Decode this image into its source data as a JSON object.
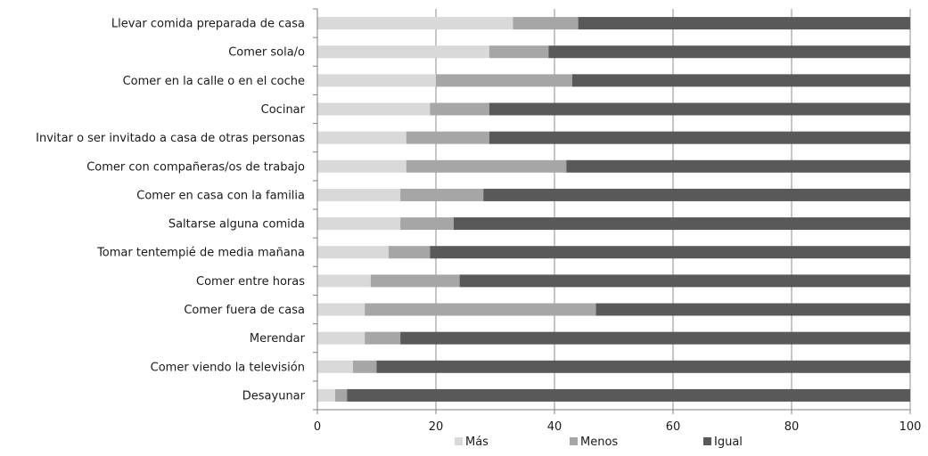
{
  "chart_data": {
    "type": "bar",
    "orientation": "horizontal",
    "stacked": true,
    "categories": [
      "Llevar comida preparada de casa",
      "Comer sola/o",
      "Comer en la calle o en el coche",
      "Cocinar",
      "Invitar o ser invitado a casa de otras personas",
      "Comer con compañeras/os de trabajo",
      "Comer en casa con la familia",
      "Saltarse alguna comida",
      "Tomar tentempié de media mañana",
      "Comer entre horas",
      "Comer fuera de casa",
      "Merendar",
      "Comer viendo la televisión",
      "Desayunar"
    ],
    "series": [
      {
        "name": "Más",
        "color": "#d9d9d9",
        "values": [
          33,
          29,
          20,
          19,
          15,
          15,
          14,
          14,
          12,
          9,
          8,
          8,
          6,
          3
        ]
      },
      {
        "name": "Menos",
        "color": "#a6a6a6",
        "values": [
          11,
          10,
          23,
          10,
          14,
          27,
          14,
          9,
          7,
          15,
          39,
          6,
          4,
          2
        ]
      },
      {
        "name": "Igual",
        "color": "#595959",
        "values": [
          56,
          61,
          57,
          71,
          71,
          58,
          72,
          77,
          81,
          76,
          53,
          86,
          90,
          95
        ]
      }
    ],
    "xlim": [
      0,
      100
    ],
    "xticks": [
      "0",
      "20",
      "40",
      "60",
      "80",
      "100"
    ],
    "grid": true,
    "legend_position": "bottom",
    "title": "",
    "xlabel": "",
    "ylabel": ""
  }
}
